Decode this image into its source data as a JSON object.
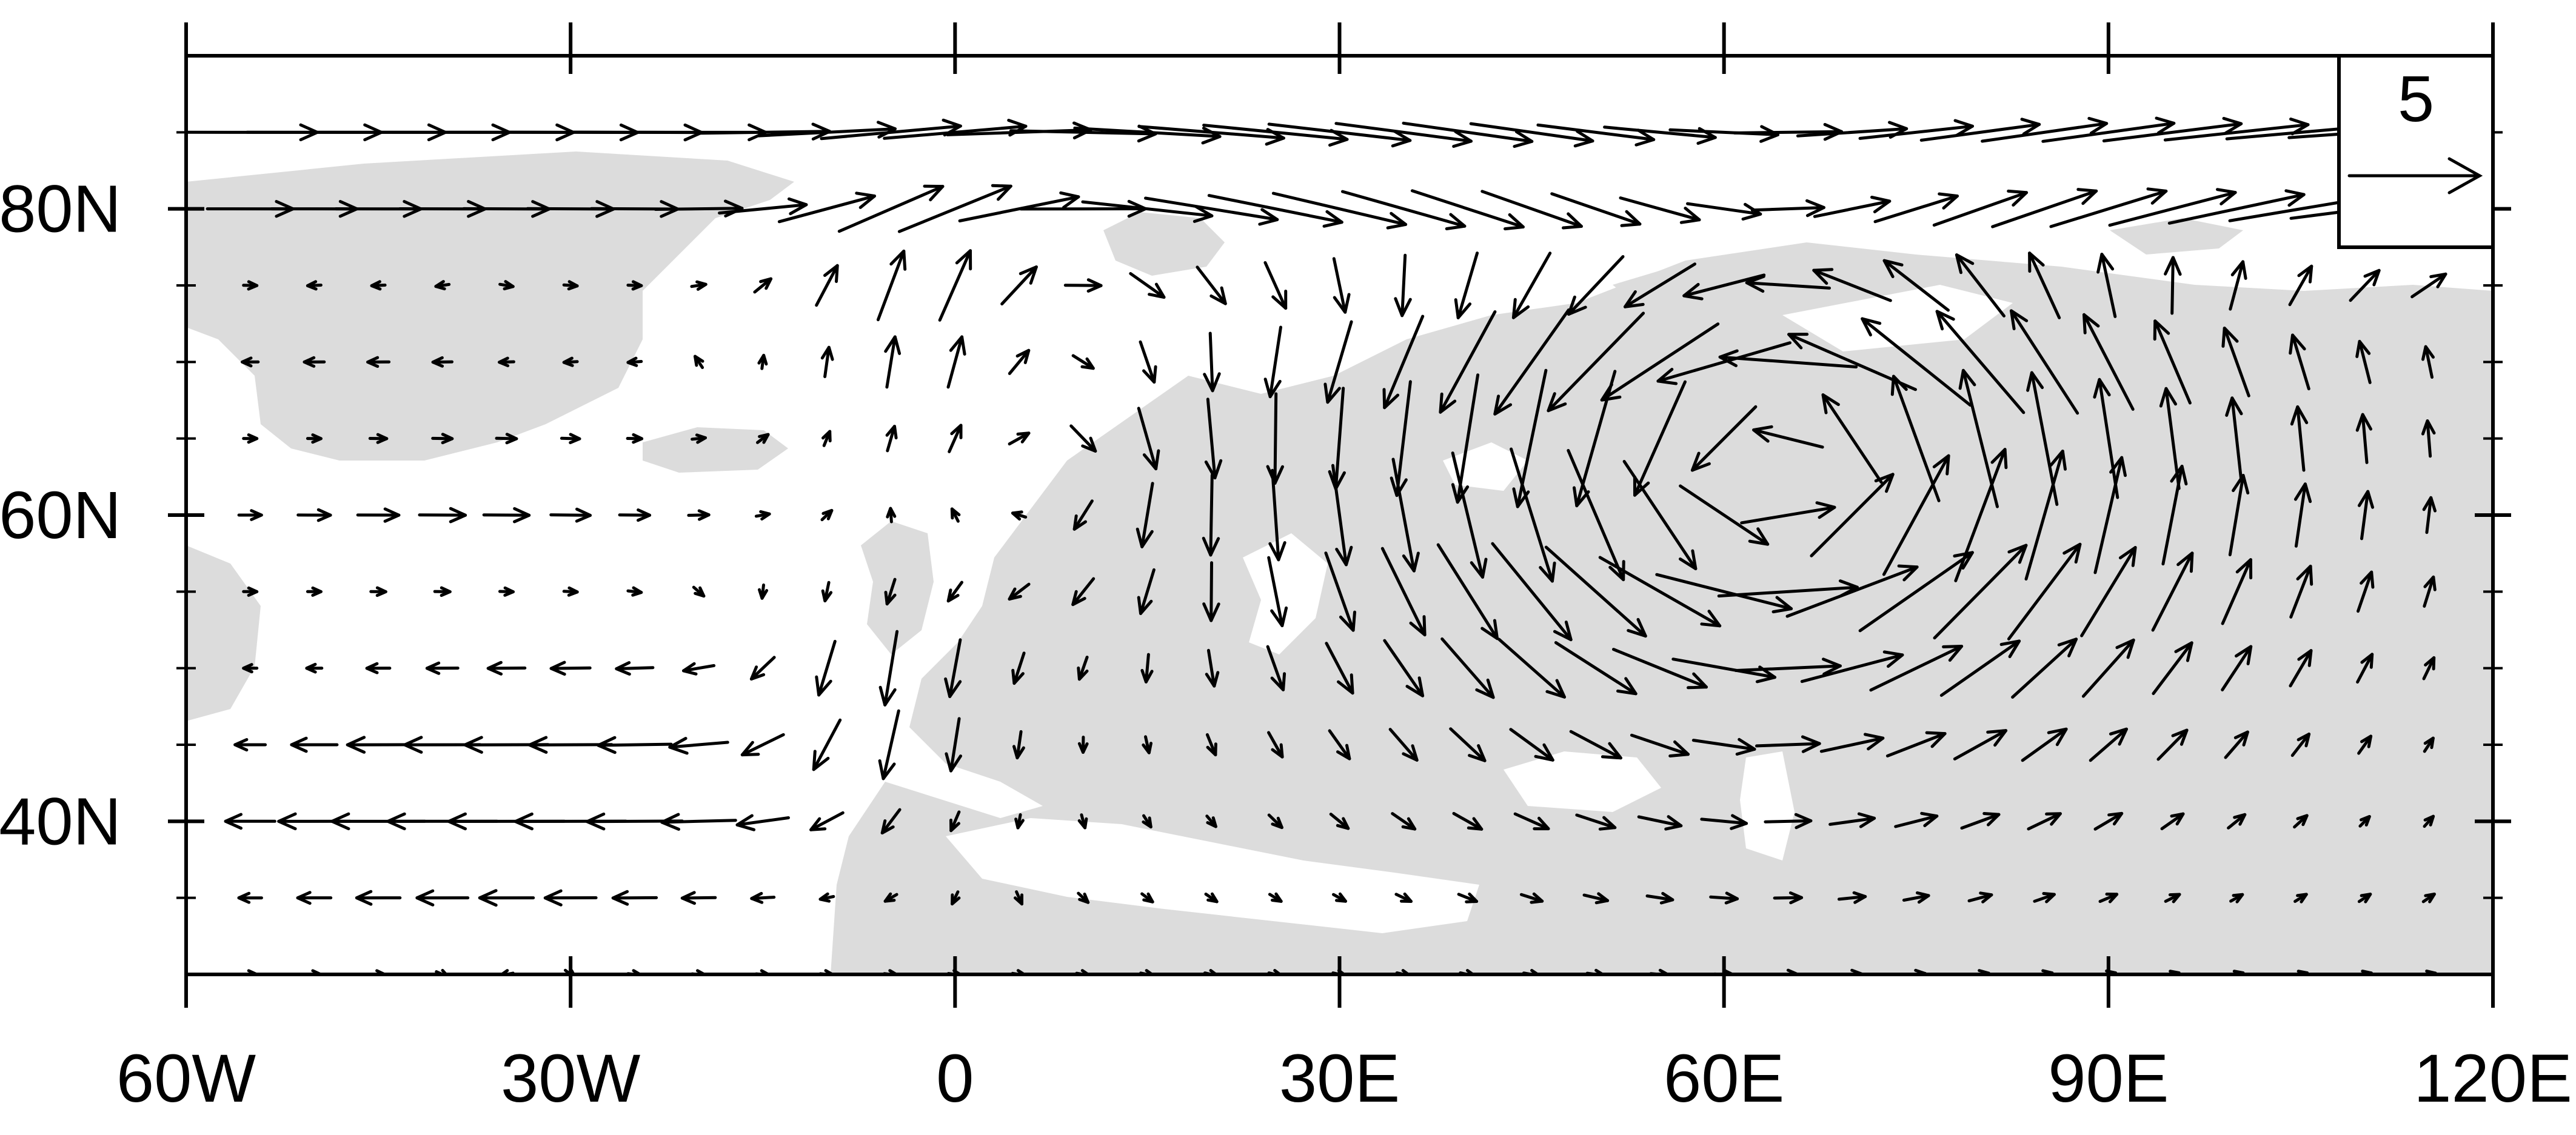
{
  "map": {
    "projection": "cylindrical-equidistant",
    "lon_range": [
      -60,
      120
    ],
    "lat_range": [
      30,
      90
    ],
    "land_color": "#dcdcdc",
    "ocean_color": "#ffffff",
    "vector_color": "#000000",
    "frame_color": "#000000"
  },
  "axes": {
    "lat_ticks": [
      {
        "value": 40,
        "label": "40N"
      },
      {
        "value": 60,
        "label": "60N"
      },
      {
        "value": 80,
        "label": "80N"
      }
    ],
    "lat_minor": [
      35,
      45,
      50,
      55,
      65,
      70,
      75,
      85
    ],
    "lon_ticks": [
      {
        "value": -60,
        "label": "60W"
      },
      {
        "value": -30,
        "label": "30W"
      },
      {
        "value": 0,
        "label": "0"
      },
      {
        "value": 30,
        "label": "30E"
      },
      {
        "value": 60,
        "label": "60E"
      },
      {
        "value": 90,
        "label": "90E"
      },
      {
        "value": 120,
        "label": "120E"
      }
    ],
    "lon_minor": [
      -55,
      -50,
      -45,
      -40,
      -35,
      -25,
      -20,
      -15,
      -10,
      -5,
      5,
      10,
      15,
      20,
      25,
      35,
      40,
      45,
      50,
      55,
      65,
      70,
      75,
      80,
      85,
      95,
      100,
      105,
      110,
      115
    ]
  },
  "reference_vector": {
    "magnitude": 5,
    "label": "5"
  },
  "wind_field": {
    "grid_lons": [
      -55,
      -50,
      -45,
      -40,
      -35,
      -30,
      -25,
      -20,
      -15,
      -10,
      -5,
      0,
      5,
      10,
      15,
      20,
      25,
      30,
      35,
      40,
      45,
      50,
      55,
      60,
      65,
      70,
      75,
      80,
      85,
      90,
      95,
      100,
      105,
      110,
      115
    ],
    "grid_lats": [
      30,
      35,
      40,
      45,
      50,
      55,
      60,
      65,
      70,
      75,
      80,
      85
    ],
    "features": {
      "cyclone_center_lon": 64,
      "cyclone_center_lat": 63,
      "cyclone_peak_speed": 6,
      "arctic_westerly_speed": 4.8,
      "north_atlantic_easterly_speed": 4.2
    }
  }
}
